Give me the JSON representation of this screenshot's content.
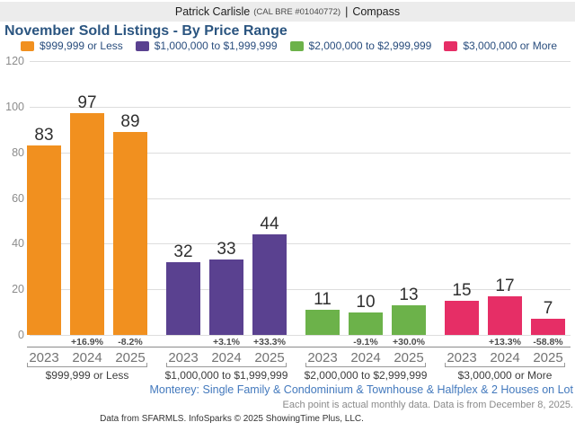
{
  "header": {
    "agent_name": "Patrick Carlisle",
    "license": "(CAL BRE #01040772)",
    "divider": "|",
    "brand": "Compass"
  },
  "title": "November Sold Listings - By Price Range",
  "chart_data": {
    "type": "bar",
    "title": "November Sold Listings - By Price Range",
    "ylim": [
      0,
      120
    ],
    "yticks": [
      0,
      20,
      40,
      60,
      80,
      100,
      120
    ],
    "grid": true,
    "legend_position": "top",
    "years": [
      "2023",
      "2024",
      "2025"
    ],
    "groups": [
      {
        "label": "$999,999 or Less",
        "color": "#F1901F",
        "values": [
          83,
          97,
          89
        ],
        "pct_change": [
          "",
          "+16.9%",
          "-8.2%"
        ]
      },
      {
        "label": "$1,000,000 to $1,999,999",
        "color": "#5A4190",
        "values": [
          32,
          33,
          44
        ],
        "pct_change": [
          "",
          "+3.1%",
          "+33.3%"
        ]
      },
      {
        "label": "$2,000,000 to $2,999,999",
        "color": "#6CB24A",
        "values": [
          11,
          10,
          13
        ],
        "pct_change": [
          "",
          "-9.1%",
          "+30.0%"
        ]
      },
      {
        "label": "$3,000,000 or More",
        "color": "#E62E66",
        "values": [
          15,
          17,
          7
        ],
        "pct_change": [
          "",
          "+13.3%",
          "-58.8%"
        ]
      }
    ]
  },
  "footnotes": {
    "market": "Monterey: Single Family & Condominium & Townhouse & Halfplex & 2 Houses on Lot",
    "data_note": "Each point is actual monthly data. Data is from December 8, 2025.",
    "source": "Data from SFARMLS. InfoSparks © 2025 ShowingTime Plus, LLC."
  }
}
